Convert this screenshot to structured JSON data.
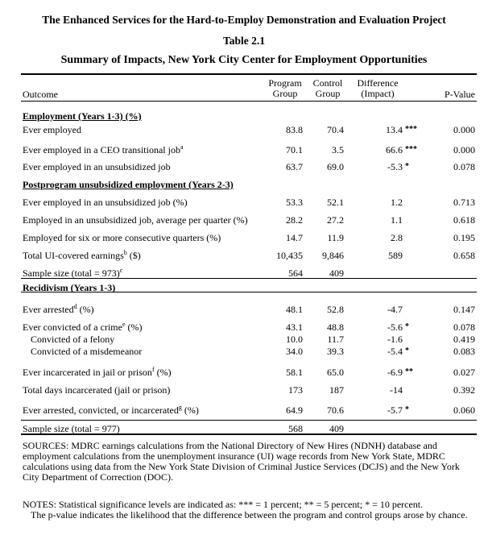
{
  "doc": {
    "title": "The Enhanced Services for the Hard-to-Employ Demonstration and Evaluation Project",
    "table_number": "Table 2.1",
    "table_title": "Summary of Impacts, New York City Center for Employment Opportunities"
  },
  "table": {
    "headers": {
      "outcome": "Outcome",
      "program": [
        "Program",
        "Group"
      ],
      "control": [
        "Control",
        "Group"
      ],
      "difference": [
        "Difference",
        "(Impact)"
      ],
      "pvalue": "P-Value"
    },
    "rows": [
      {
        "type": "section",
        "label": "Employment (Years 1-3) (%)"
      },
      {
        "label": "Ever employed",
        "program": "83.8",
        "control": "70.4",
        "difference": "13.4",
        "stars": "***",
        "pvalue": "0.000"
      },
      {
        "label": "Ever employed in a CEO transitional job",
        "sup": "a",
        "program": "70.1",
        "control": "3.5",
        "difference": "66.6",
        "stars": "***",
        "pvalue": "0.000"
      },
      {
        "label": "Ever employed in an unsubsidized job",
        "program": "63.7",
        "control": "69.0",
        "difference": "-5.3",
        "stars": "*",
        "pvalue": "0.078"
      },
      {
        "type": "section",
        "label": "Postprogram unsubsidized employment (Years 2-3)"
      },
      {
        "label": "Ever employed in an unsubsidized job (%)",
        "program": "53.3",
        "control": "52.1",
        "difference": "1.2",
        "stars": "",
        "pvalue": "0.713"
      },
      {
        "label": "Employed in an unsubsidized job, average per quarter (%)",
        "program": "28.2",
        "control": "27.2",
        "difference": "1.1",
        "stars": "",
        "pvalue": "0.618"
      },
      {
        "label": "Employed for six or more consecutive quarters (%)",
        "program": "14.7",
        "control": "11.9",
        "difference": "2.8",
        "stars": "",
        "pvalue": "0.195"
      },
      {
        "label": "Total UI-covered earnings",
        "sup": "b",
        "suffix": " ($)",
        "program": "10,435",
        "control": "9,846",
        "difference": "589",
        "stars": "",
        "pvalue": "0.658"
      },
      {
        "type": "sample",
        "label": "Sample size (total = 973)",
        "sup": "c",
        "program": "564",
        "control": "409"
      },
      {
        "type": "section",
        "label": "Recidivism (Years 1-3)"
      },
      {
        "label": "Ever arrested",
        "sup": "d",
        "suffix": " (%)",
        "program": "48.1",
        "control": "52.8",
        "difference": "-4.7",
        "stars": "",
        "pvalue": "0.147"
      },
      {
        "label": "Ever convicted of a crime",
        "sup": "e",
        "suffix": " (%)",
        "program": "43.1",
        "control": "48.8",
        "difference": "-5.6",
        "stars": "*",
        "pvalue": "0.078"
      },
      {
        "label": "Convicted of a felony",
        "indent": true,
        "program": "10.0",
        "control": "11.7",
        "difference": "-1.6",
        "stars": "",
        "pvalue": "0.419"
      },
      {
        "label": "Convicted of a misdemeanor",
        "indent": true,
        "program": "34.0",
        "control": "39.3",
        "difference": "-5.4",
        "stars": "*",
        "pvalue": "0.083"
      },
      {
        "label": "Ever incarcerated in jail or prison",
        "sup": "f",
        "suffix": " (%)",
        "program": "58.1",
        "control": "65.0",
        "difference": "-6.9",
        "stars": "**",
        "pvalue": "0.027"
      },
      {
        "label": "Total days incarcerated (jail or prison)",
        "program": "173",
        "control": "187",
        "difference": "-14",
        "stars": "",
        "pvalue": "0.392"
      },
      {
        "label": "Ever arrested, convicted, or incarcerated",
        "sup": "g",
        "suffix": " (%)",
        "program": "64.9",
        "control": "70.6",
        "difference": "-5.7",
        "stars": "*",
        "pvalue": "0.060"
      },
      {
        "type": "sample",
        "label": "Sample size (total = 977)",
        "program": "568",
        "control": "409"
      }
    ]
  },
  "notes": {
    "sources": "SOURCES: MDRC earnings calculations from the National Directory of New Hires (NDNH) database and employment calculations from the unemployment insurance (UI) wage records from New York State, MDRC calculations using data from the New York State Division of Criminal Justice Services (DCJS) and the New York City Department of Correction (DOC).",
    "significance": "NOTES: Statistical significance levels are indicated as: *** = 1 percent; ** = 5 percent; * = 10 percent.",
    "pvalue": "The p-value indicates the likelihood that the difference between the program and control groups arose by chance."
  }
}
